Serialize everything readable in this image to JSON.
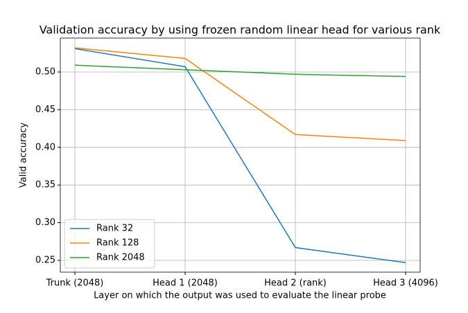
{
  "chart_data": {
    "type": "line",
    "title": "Validation accuracy by using frozen random linear head for various rank",
    "x_label": "Layer on which the output was used to evaluate the linear probe",
    "y_label": "Valid accuracy",
    "categories": [
      "Trunk (2048)",
      "Head 1 (2048)",
      "Head 2 (rank)",
      "Head 3 (4096)"
    ],
    "series": [
      {
        "name": "Rank 32",
        "color": "#1f77b4",
        "values": [
          0.531,
          0.507,
          0.267,
          0.247
        ]
      },
      {
        "name": "Rank 128",
        "color": "#ff7f0e",
        "values": [
          0.532,
          0.518,
          0.417,
          0.409
        ]
      },
      {
        "name": "Rank 2048",
        "color": "#2ca02c",
        "values": [
          0.509,
          0.503,
          0.497,
          0.494
        ]
      }
    ],
    "ylim": [
      0.2344,
      0.545
    ],
    "yticks": [
      0.25,
      {
        "value": 0.3,
        "label": "0.30"
      },
      0.35,
      {
        "value": 0.4,
        "label": "0.40"
      },
      0.45,
      {
        "value": 0.5,
        "label": "0.50"
      }
    ],
    "grid": true,
    "legend_position": "lower left"
  }
}
